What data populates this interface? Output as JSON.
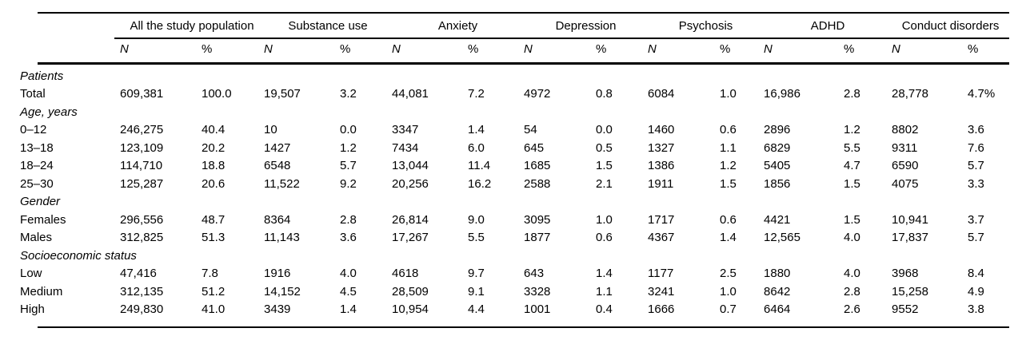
{
  "table": {
    "groups": [
      {
        "label": "All the study population"
      },
      {
        "label": "Substance use"
      },
      {
        "label": "Anxiety"
      },
      {
        "label": "Depression"
      },
      {
        "label": "Psychosis"
      },
      {
        "label": "ADHD"
      },
      {
        "label": "Conduct disorders"
      }
    ],
    "subheaders": {
      "n": "N",
      "pct": "%"
    },
    "rows": [
      {
        "type": "section",
        "label": "Patients"
      },
      {
        "type": "data",
        "label": "Total",
        "values": [
          "609,381",
          "100.0",
          "19,507",
          "3.2",
          "44,081",
          "7.2",
          "4972",
          "0.8",
          "6084",
          "1.0",
          "16,986",
          "2.8",
          "28,778",
          "4.7%"
        ]
      },
      {
        "type": "section",
        "label": "Age, years"
      },
      {
        "type": "data",
        "label": "0–12",
        "values": [
          "246,275",
          "40.4",
          "10",
          "0.0",
          "3347",
          "1.4",
          "54",
          "0.0",
          "1460",
          "0.6",
          "2896",
          "1.2",
          "8802",
          "3.6"
        ]
      },
      {
        "type": "data",
        "label": "13–18",
        "values": [
          "123,109",
          "20.2",
          "1427",
          "1.2",
          "7434",
          "6.0",
          "645",
          "0.5",
          "1327",
          "1.1",
          "6829",
          "5.5",
          "9311",
          "7.6"
        ]
      },
      {
        "type": "data",
        "label": "18–24",
        "values": [
          "114,710",
          "18.8",
          "6548",
          "5.7",
          "13,044",
          "11.4",
          "1685",
          "1.5",
          "1386",
          "1.2",
          "5405",
          "4.7",
          "6590",
          "5.7"
        ]
      },
      {
        "type": "data",
        "label": "25–30",
        "values": [
          "125,287",
          "20.6",
          "11,522",
          "9.2",
          "20,256",
          "16.2",
          "2588",
          "2.1",
          "1911",
          "1.5",
          "1856",
          "1.5",
          "4075",
          "3.3"
        ]
      },
      {
        "type": "section",
        "label": "Gender"
      },
      {
        "type": "data",
        "label": "Females",
        "values": [
          "296,556",
          "48.7",
          "8364",
          "2.8",
          "26,814",
          "9.0",
          "3095",
          "1.0",
          "1717",
          "0.6",
          "4421",
          "1.5",
          "10,941",
          "3.7"
        ]
      },
      {
        "type": "data",
        "label": "Males",
        "values": [
          "312,825",
          "51.3",
          "11,143",
          "3.6",
          "17,267",
          "5.5",
          "1877",
          "0.6",
          "4367",
          "1.4",
          "12,565",
          "4.0",
          "17,837",
          "5.7"
        ]
      },
      {
        "type": "section",
        "label": "Socioeconomic status"
      },
      {
        "type": "data",
        "label": "Low",
        "values": [
          "47,416",
          "7.8",
          "1916",
          "4.0",
          "4618",
          "9.7",
          "643",
          "1.4",
          "1177",
          "2.5",
          "1880",
          "4.0",
          "3968",
          "8.4"
        ]
      },
      {
        "type": "data",
        "label": "Medium",
        "values": [
          "312,135",
          "51.2",
          "14,152",
          "4.5",
          "28,509",
          "9.1",
          "3328",
          "1.1",
          "3241",
          "1.0",
          "8642",
          "2.8",
          "15,258",
          "4.9"
        ]
      },
      {
        "type": "data",
        "label": "High",
        "values": [
          "249,830",
          "41.0",
          "3439",
          "1.4",
          "10,954",
          "4.4",
          "1001",
          "0.4",
          "1666",
          "0.7",
          "6464",
          "2.6",
          "9552",
          "3.8"
        ]
      }
    ]
  }
}
